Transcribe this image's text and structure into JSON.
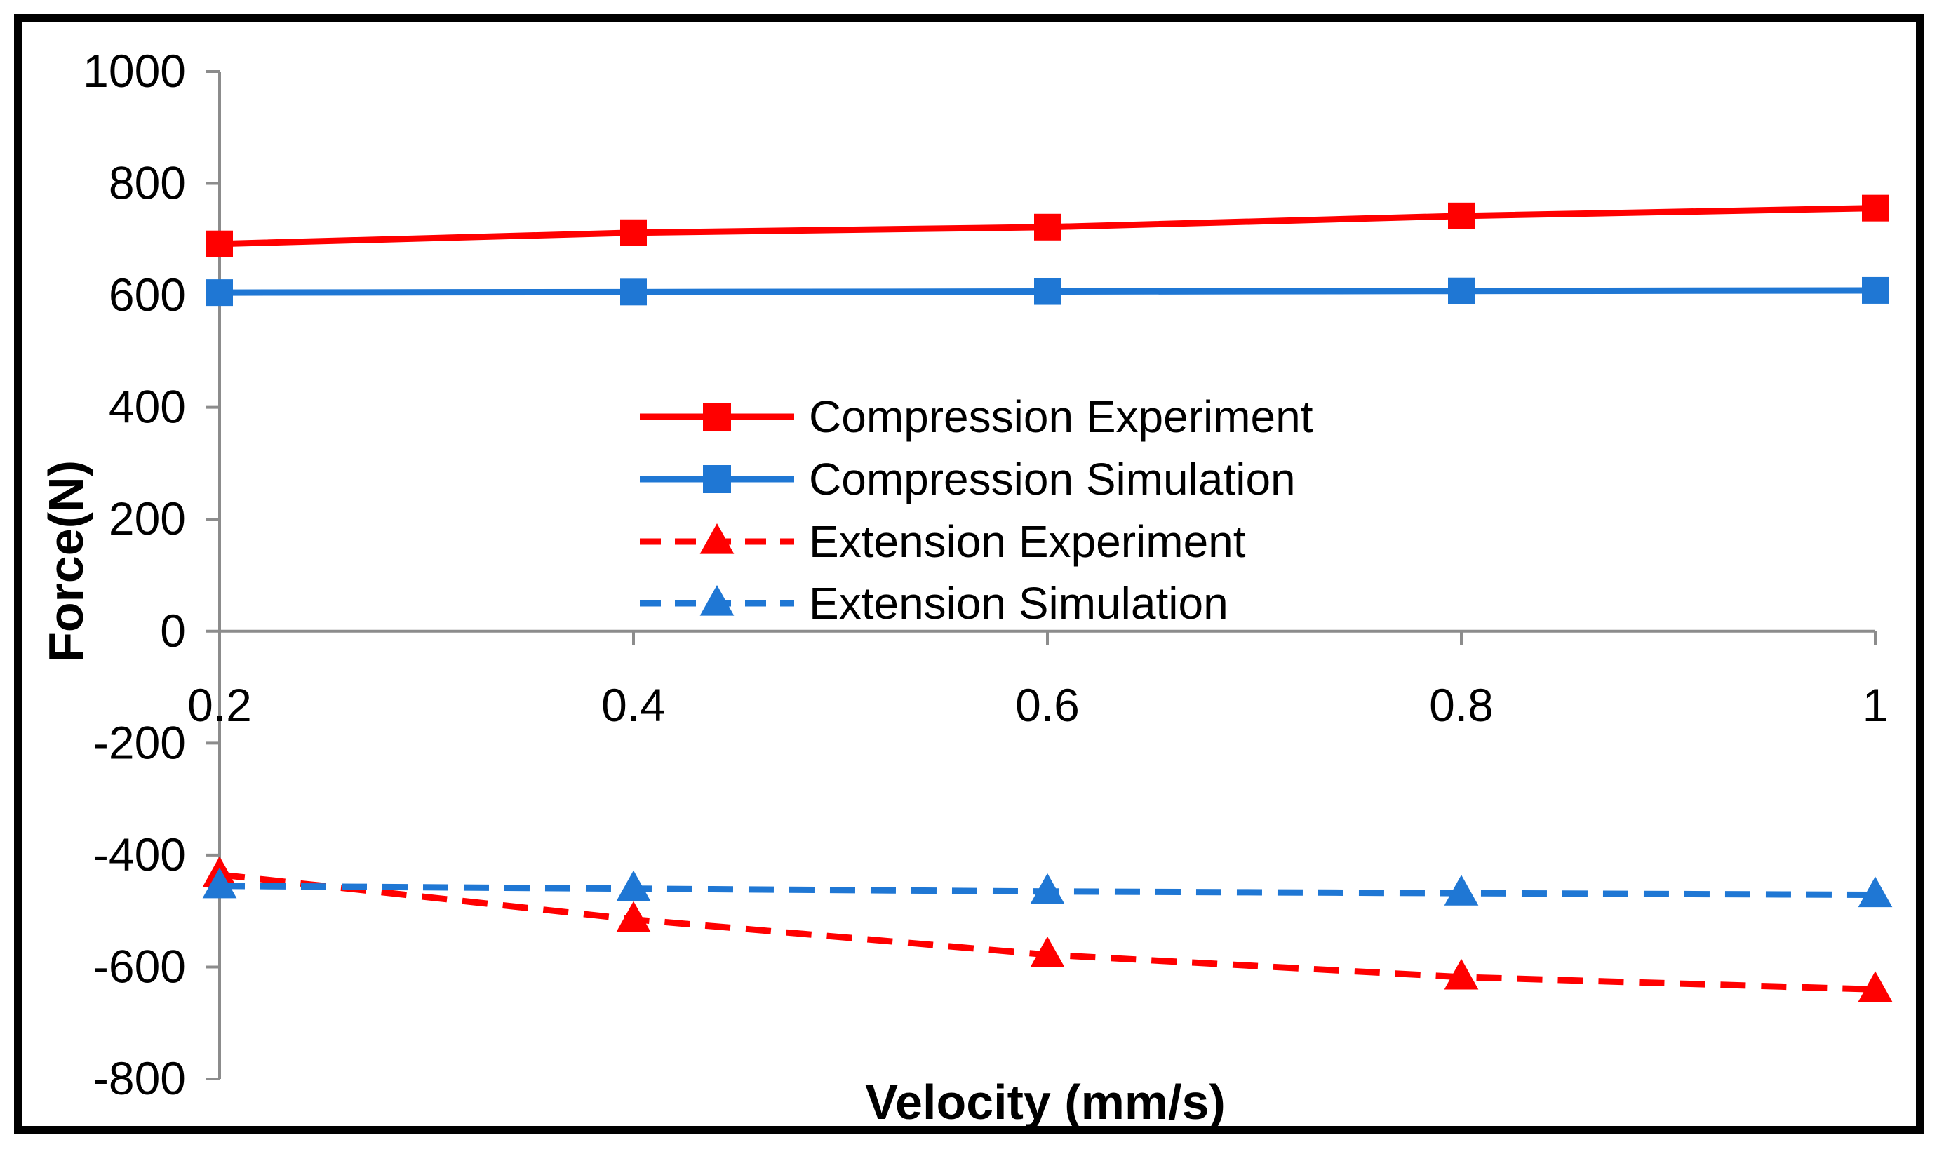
{
  "chart_data": {
    "type": "line",
    "title": "",
    "xlabel": "Velocity (mm/s)",
    "ylabel": "Force(N)",
    "x": [
      0.2,
      0.4,
      0.6,
      0.8,
      1
    ],
    "xticks": [
      "0.2",
      "0.4",
      "0.6",
      "0.8",
      "1"
    ],
    "xlim": [
      0.2,
      1
    ],
    "ylim": [
      -800,
      1000
    ],
    "yticks": [
      "1000",
      "800",
      "600",
      "400",
      "200",
      "0",
      "-200",
      "-400",
      "-600",
      "-800"
    ],
    "ytick_values": [
      1000,
      800,
      600,
      400,
      200,
      0,
      -200,
      -400,
      -600,
      -800
    ],
    "grid": false,
    "legend_position": "center",
    "series": [
      {
        "name": "Compression Experiment",
        "values": [
          692,
          712,
          722,
          742,
          756
        ],
        "color": "#ff0000",
        "line": "solid",
        "marker": "square"
      },
      {
        "name": "Compression Simulation",
        "values": [
          605,
          606,
          607,
          608,
          609
        ],
        "color": "#1f77d4",
        "line": "solid",
        "marker": "square"
      },
      {
        "name": "Extension Experiment",
        "values": [
          -435,
          -515,
          -578,
          -618,
          -640
        ],
        "color": "#ff0000",
        "line": "dashed",
        "marker": "triangle"
      },
      {
        "name": "Extension Simulation",
        "values": [
          -455,
          -460,
          -465,
          -468,
          -471
        ],
        "color": "#1f77d4",
        "line": "dashed",
        "marker": "triangle"
      }
    ]
  }
}
